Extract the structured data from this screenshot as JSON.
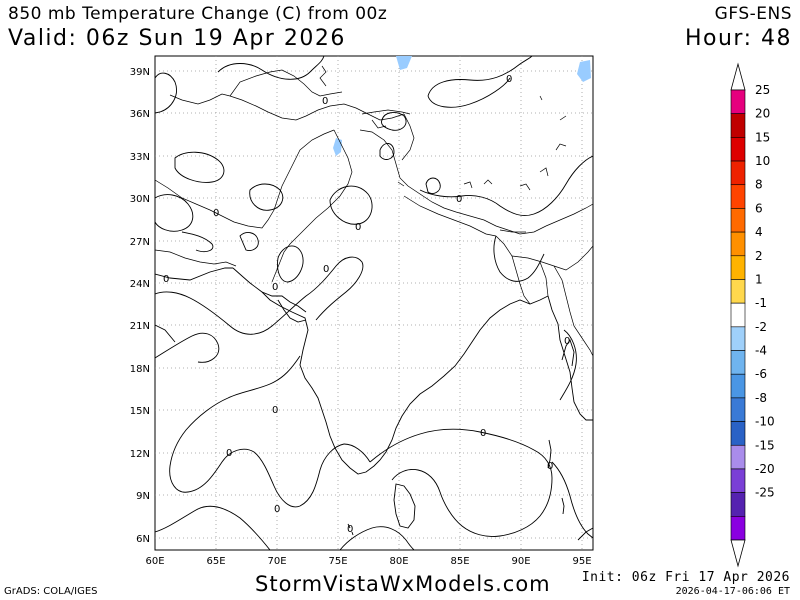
{
  "header": {
    "title": "850 mb Temperature Change (C) from 00z",
    "valid": "Valid: 06z Sun 19 Apr 2026",
    "model": "GFS-ENS",
    "hour": "Hour: 48"
  },
  "footer": {
    "credit": "GrADS: COLA/IGES",
    "site": "StormVistaWxModels.com",
    "init": "Init: 06z Fri 17 Apr 2026",
    "timestamp": "2026-04-17-06:06 ET"
  },
  "map": {
    "lat_labels": [
      "39N",
      "36N",
      "33N",
      "30N",
      "27N",
      "24N",
      "21N",
      "18N",
      "15N",
      "12N",
      "9N",
      "6N"
    ],
    "lon_labels": [
      "60E",
      "65E",
      "70E",
      "75E",
      "80E",
      "85E",
      "90E",
      "95E"
    ],
    "contour_label": "0",
    "colors": {
      "cold_patch": "#99ccff"
    }
  },
  "legend": {
    "labels": [
      "25",
      "20",
      "15",
      "10",
      "8",
      "6",
      "4",
      "2",
      "1",
      "-1",
      "-2",
      "-4",
      "-6",
      "-8",
      "-10",
      "-15",
      "-20",
      "-25"
    ],
    "colors": [
      "#e6007e",
      "#c00000",
      "#dd0000",
      "#ee2200",
      "#ff4400",
      "#ff6a00",
      "#ff9000",
      "#ffb300",
      "#ffd84d",
      "#ffffff",
      "#9fd0fa",
      "#6fb4ef",
      "#4a96e4",
      "#3a7ad6",
      "#2a62c6",
      "#a98ceb",
      "#7a3fd6",
      "#5522b0",
      "#8a00e0"
    ]
  }
}
